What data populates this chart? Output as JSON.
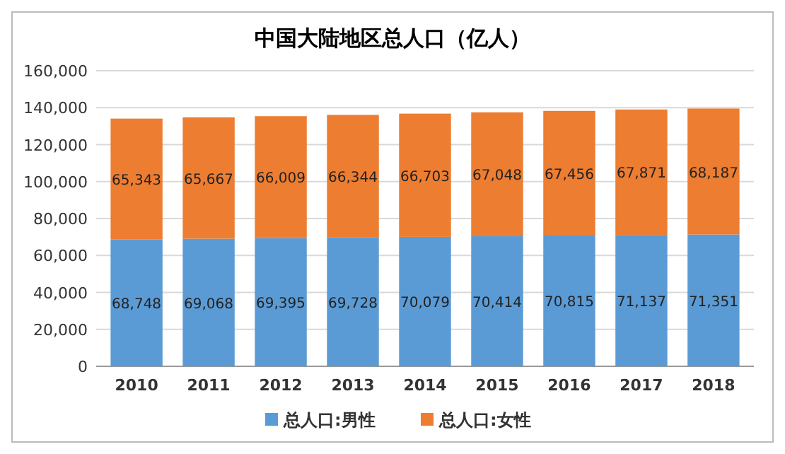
{
  "chart_data": {
    "type": "bar",
    "title": "中国大陆地区总人口（亿人）",
    "stacked": true,
    "categories": [
      "2010",
      "2011",
      "2012",
      "2013",
      "2014",
      "2015",
      "2016",
      "2017",
      "2018"
    ],
    "series": [
      {
        "name": "总人口:男性",
        "color": "#5b9bd5",
        "values": [
          68748,
          69068,
          69395,
          69728,
          70079,
          70414,
          70815,
          71137,
          71351
        ],
        "value_labels": [
          "68,748",
          "69,068",
          "69,395",
          "69,728",
          "70,079",
          "70,414",
          "70,815",
          "71,137",
          "71,351"
        ]
      },
      {
        "name": "总人口:女性",
        "color": "#ed7d31",
        "values": [
          65343,
          65667,
          66009,
          66344,
          66703,
          67048,
          67456,
          67871,
          68187
        ],
        "value_labels": [
          "65,343",
          "65,667",
          "66,009",
          "66,344",
          "66,703",
          "67,048",
          "67,456",
          "67,871",
          "68,187"
        ]
      }
    ],
    "ylim": [
      0,
      160000
    ],
    "yticks": [
      0,
      {
        "value": 20000,
        "label": "20,000"
      },
      {
        "value": 40000,
        "label": "40,000"
      },
      {
        "value": 60000,
        "label": "60,000"
      },
      {
        "value": 80000,
        "label": "80,000"
      },
      {
        "value": 100000,
        "label": "100,000"
      },
      {
        "value": 120000,
        "label": "120,000"
      },
      {
        "value": 140000,
        "label": "140,000"
      },
      {
        "value": 160000,
        "label": "160,000"
      }
    ],
    "grid": "y",
    "legend": "bottom"
  }
}
